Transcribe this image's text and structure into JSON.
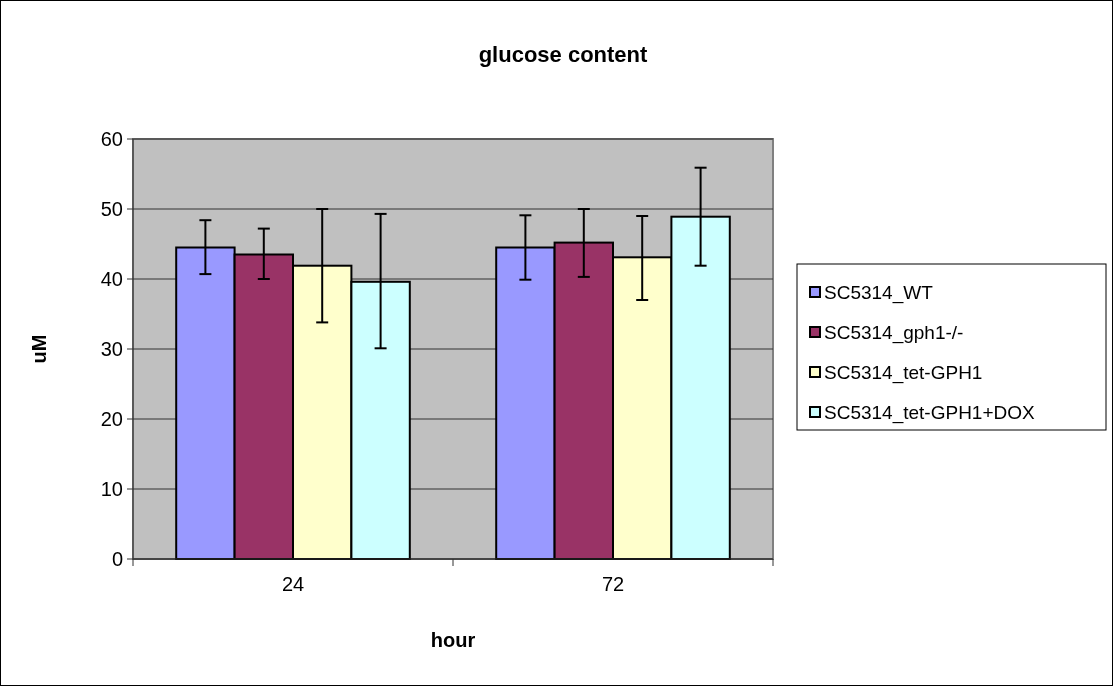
{
  "chart_data": {
    "type": "bar",
    "title": "glucose content",
    "xlabel": "hour",
    "ylabel": "uM",
    "categories": [
      "24",
      "72"
    ],
    "series": [
      {
        "name": "SC5314_WT",
        "color": "#9999ff",
        "values": [
          44.5,
          44.5
        ],
        "errors": [
          [
            40.7,
            48.4
          ],
          [
            39.9,
            49.1
          ]
        ]
      },
      {
        "name": "SC5314_gph1-/-",
        "color": "#993366",
        "values": [
          43.5,
          45.2
        ],
        "errors": [
          [
            40.0,
            47.2
          ],
          [
            40.3,
            50.0
          ]
        ]
      },
      {
        "name": "SC5314_tet-GPH1",
        "color": "#ffffcc",
        "values": [
          41.9,
          43.1
        ],
        "errors": [
          [
            33.8,
            50.0
          ],
          [
            37.0,
            49.0
          ]
        ]
      },
      {
        "name": "SC5314_tet-GPH1+DOX",
        "color": "#ccffff",
        "values": [
          39.6,
          48.9
        ],
        "errors": [
          [
            30.1,
            49.3
          ],
          [
            41.9,
            55.9
          ]
        ]
      }
    ],
    "ylim": [
      0,
      60
    ],
    "yticks": [
      0,
      10,
      20,
      30,
      40,
      50,
      60
    ],
    "grid": "y",
    "legend": "right"
  }
}
